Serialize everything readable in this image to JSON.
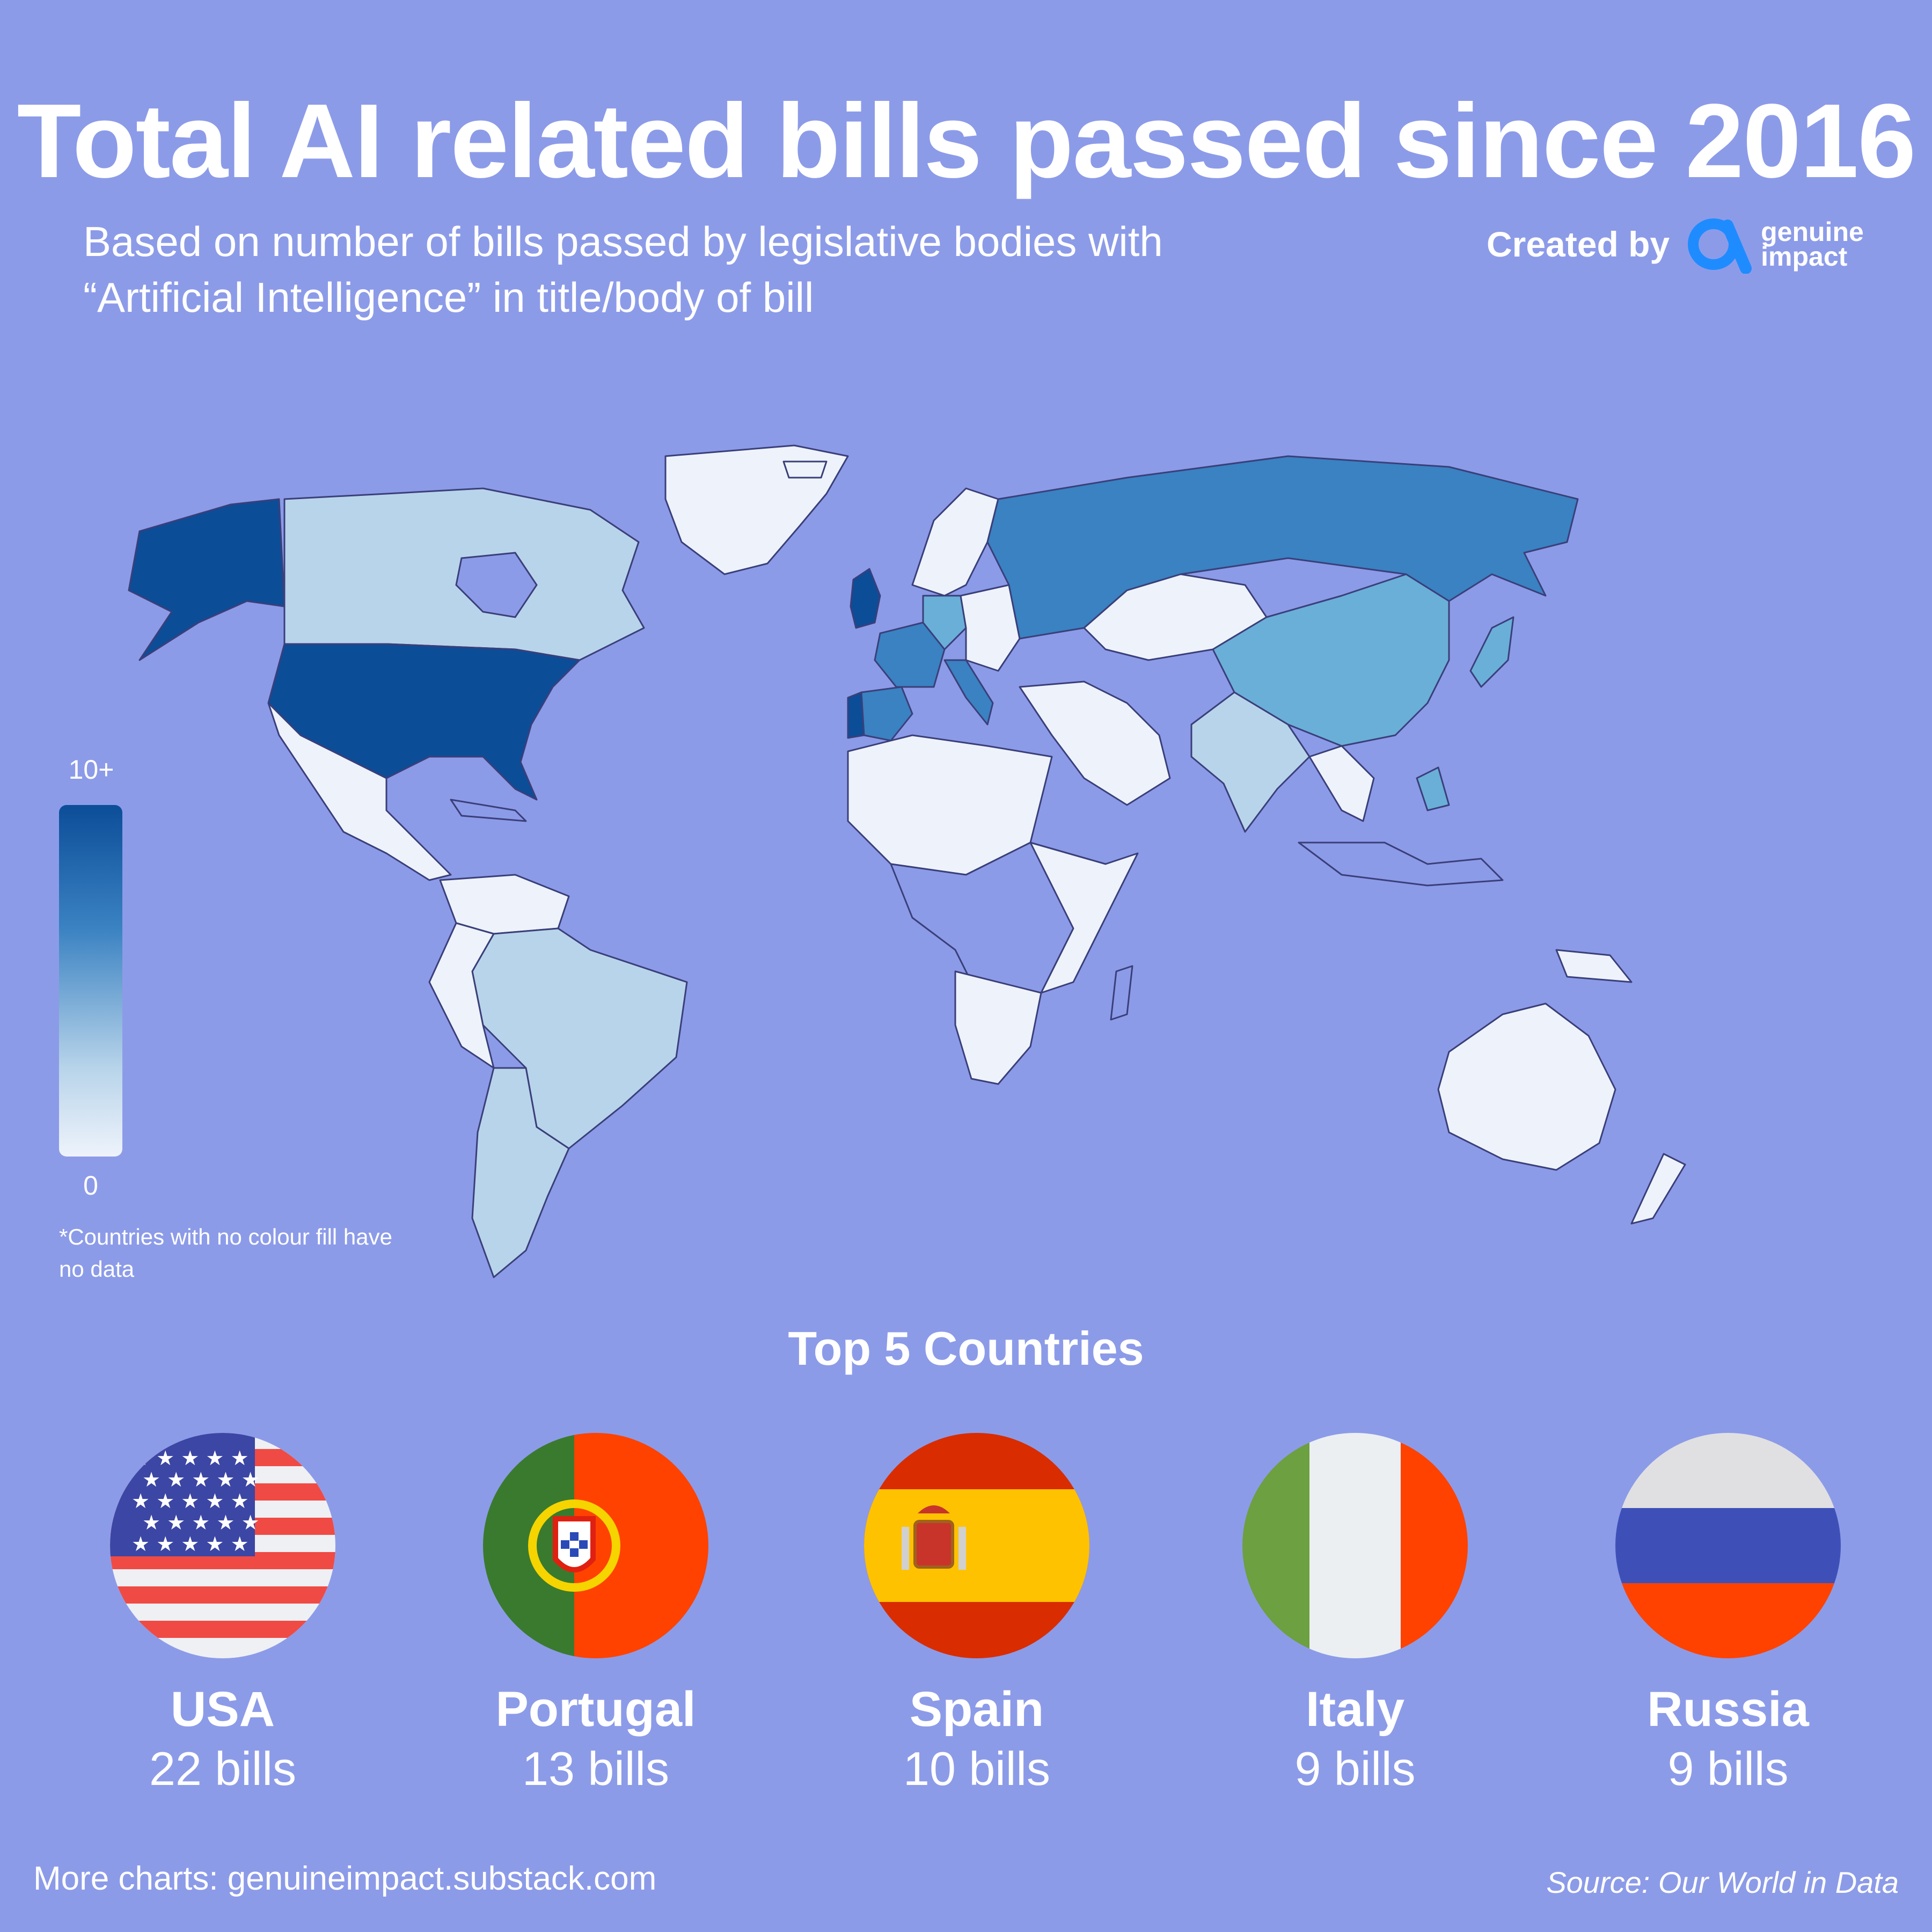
{
  "header": {
    "title": "Total AI related bills passed since 2016",
    "subtitle_line1": "Based on number of bills passed by legislative bodies with",
    "subtitle_line2": "“Artificial Intelligence” in title/body of bill",
    "credit_label": "Created by",
    "brand_line1": "genuine",
    "brand_line2": "impact"
  },
  "colors": {
    "background": "#8c9be8",
    "scale_max": "#0c4d98",
    "scale_high": "#3a82c2",
    "scale_mid": "#6aafd8",
    "scale_low": "#b8d4ea",
    "scale_min": "#eef3fb",
    "brand_logo": "#1e8cff",
    "border": "#3a3f7a"
  },
  "legend": {
    "max_label": "10+",
    "min_label": "0",
    "footnote_line1": "*Countries with no colour fill have",
    "footnote_line2": "no data"
  },
  "top5": {
    "heading": "Top 5 Countries",
    "countries": [
      {
        "name": "USA",
        "count": "22 bills",
        "flag_icon": "usa-flag-icon"
      },
      {
        "name": "Portugal",
        "count": "13 bills",
        "flag_icon": "portugal-flag-icon"
      },
      {
        "name": "Spain",
        "count": "10 bills",
        "flag_icon": "spain-flag-icon"
      },
      {
        "name": "Italy",
        "count": "9 bills",
        "flag_icon": "italy-flag-icon"
      },
      {
        "name": "Russia",
        "count": "9 bills",
        "flag_icon": "russia-flag-icon"
      }
    ]
  },
  "footer": {
    "more_charts": "More charts: genuineimpact.substack.com",
    "source": "Source: Our World in Data"
  }
}
